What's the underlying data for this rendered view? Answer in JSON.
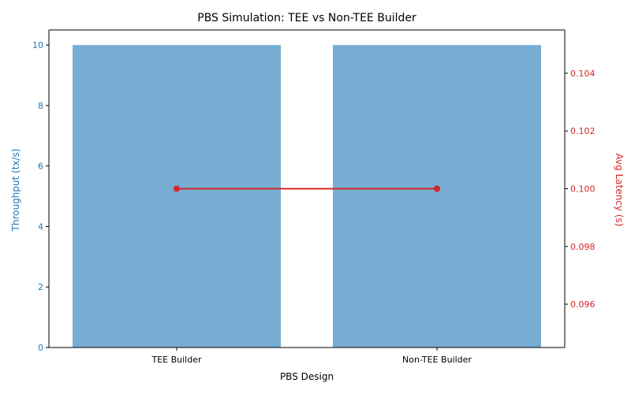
{
  "chart_data": {
    "type": "bar",
    "title": "PBS Simulation: TEE vs Non-TEE Builder",
    "xlabel": "PBS Design",
    "categories": [
      "TEE Builder",
      "Non-TEE Builder"
    ],
    "series": [
      {
        "type": "bar",
        "axis": "left",
        "values": [
          10,
          10
        ],
        "color": "#77acd3"
      },
      {
        "type": "line",
        "axis": "right",
        "values": [
          0.1,
          0.1
        ],
        "color": "#d62728"
      }
    ],
    "y_left": {
      "label": "Throughput (tx/s)",
      "range": [
        0,
        10.5
      ],
      "ticks": [
        0,
        2,
        4,
        6,
        8,
        10
      ],
      "tick_labels": [
        "0",
        "2",
        "4",
        "6",
        "8",
        "10"
      ],
      "color": "#1f77b4"
    },
    "y_right": {
      "label": "Avg Latency (s)",
      "range": [
        0.0945,
        0.1055
      ],
      "ticks": [
        0.096,
        0.098,
        0.1,
        0.102,
        0.104
      ],
      "tick_labels": [
        "0.096",
        "0.098",
        "0.100",
        "0.102",
        "0.104"
      ],
      "color": "#d62728"
    },
    "grid": false,
    "legend": "none"
  }
}
